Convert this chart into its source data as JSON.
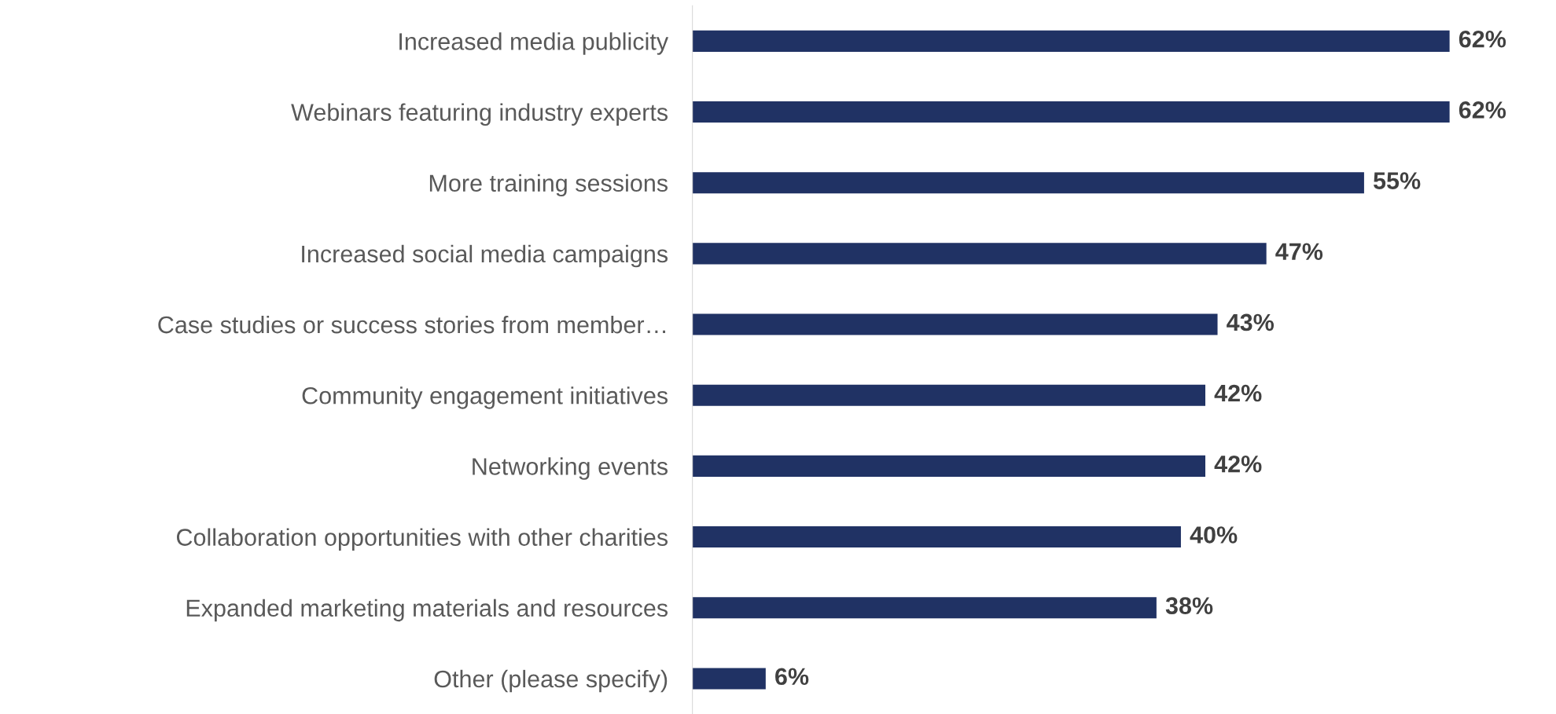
{
  "chart_data": {
    "type": "bar",
    "orientation": "horizontal",
    "categories": [
      "Increased media publicity",
      "Webinars featuring industry experts",
      "More training sessions",
      "Increased social media campaigns",
      "Case studies or success stories from member…",
      "Community engagement initiatives",
      "Networking events",
      "Collaboration opportunities with other charities",
      "Expanded marketing materials and resources",
      "Other (please specify)"
    ],
    "values": [
      62,
      62,
      55,
      47,
      43,
      42,
      42,
      40,
      38,
      6
    ],
    "value_labels": [
      "62%",
      "62%",
      "55%",
      "47%",
      "43%",
      "42%",
      "42%",
      "40%",
      "38%",
      "6%"
    ],
    "color": "#203264",
    "grid": false,
    "legend": false
  }
}
